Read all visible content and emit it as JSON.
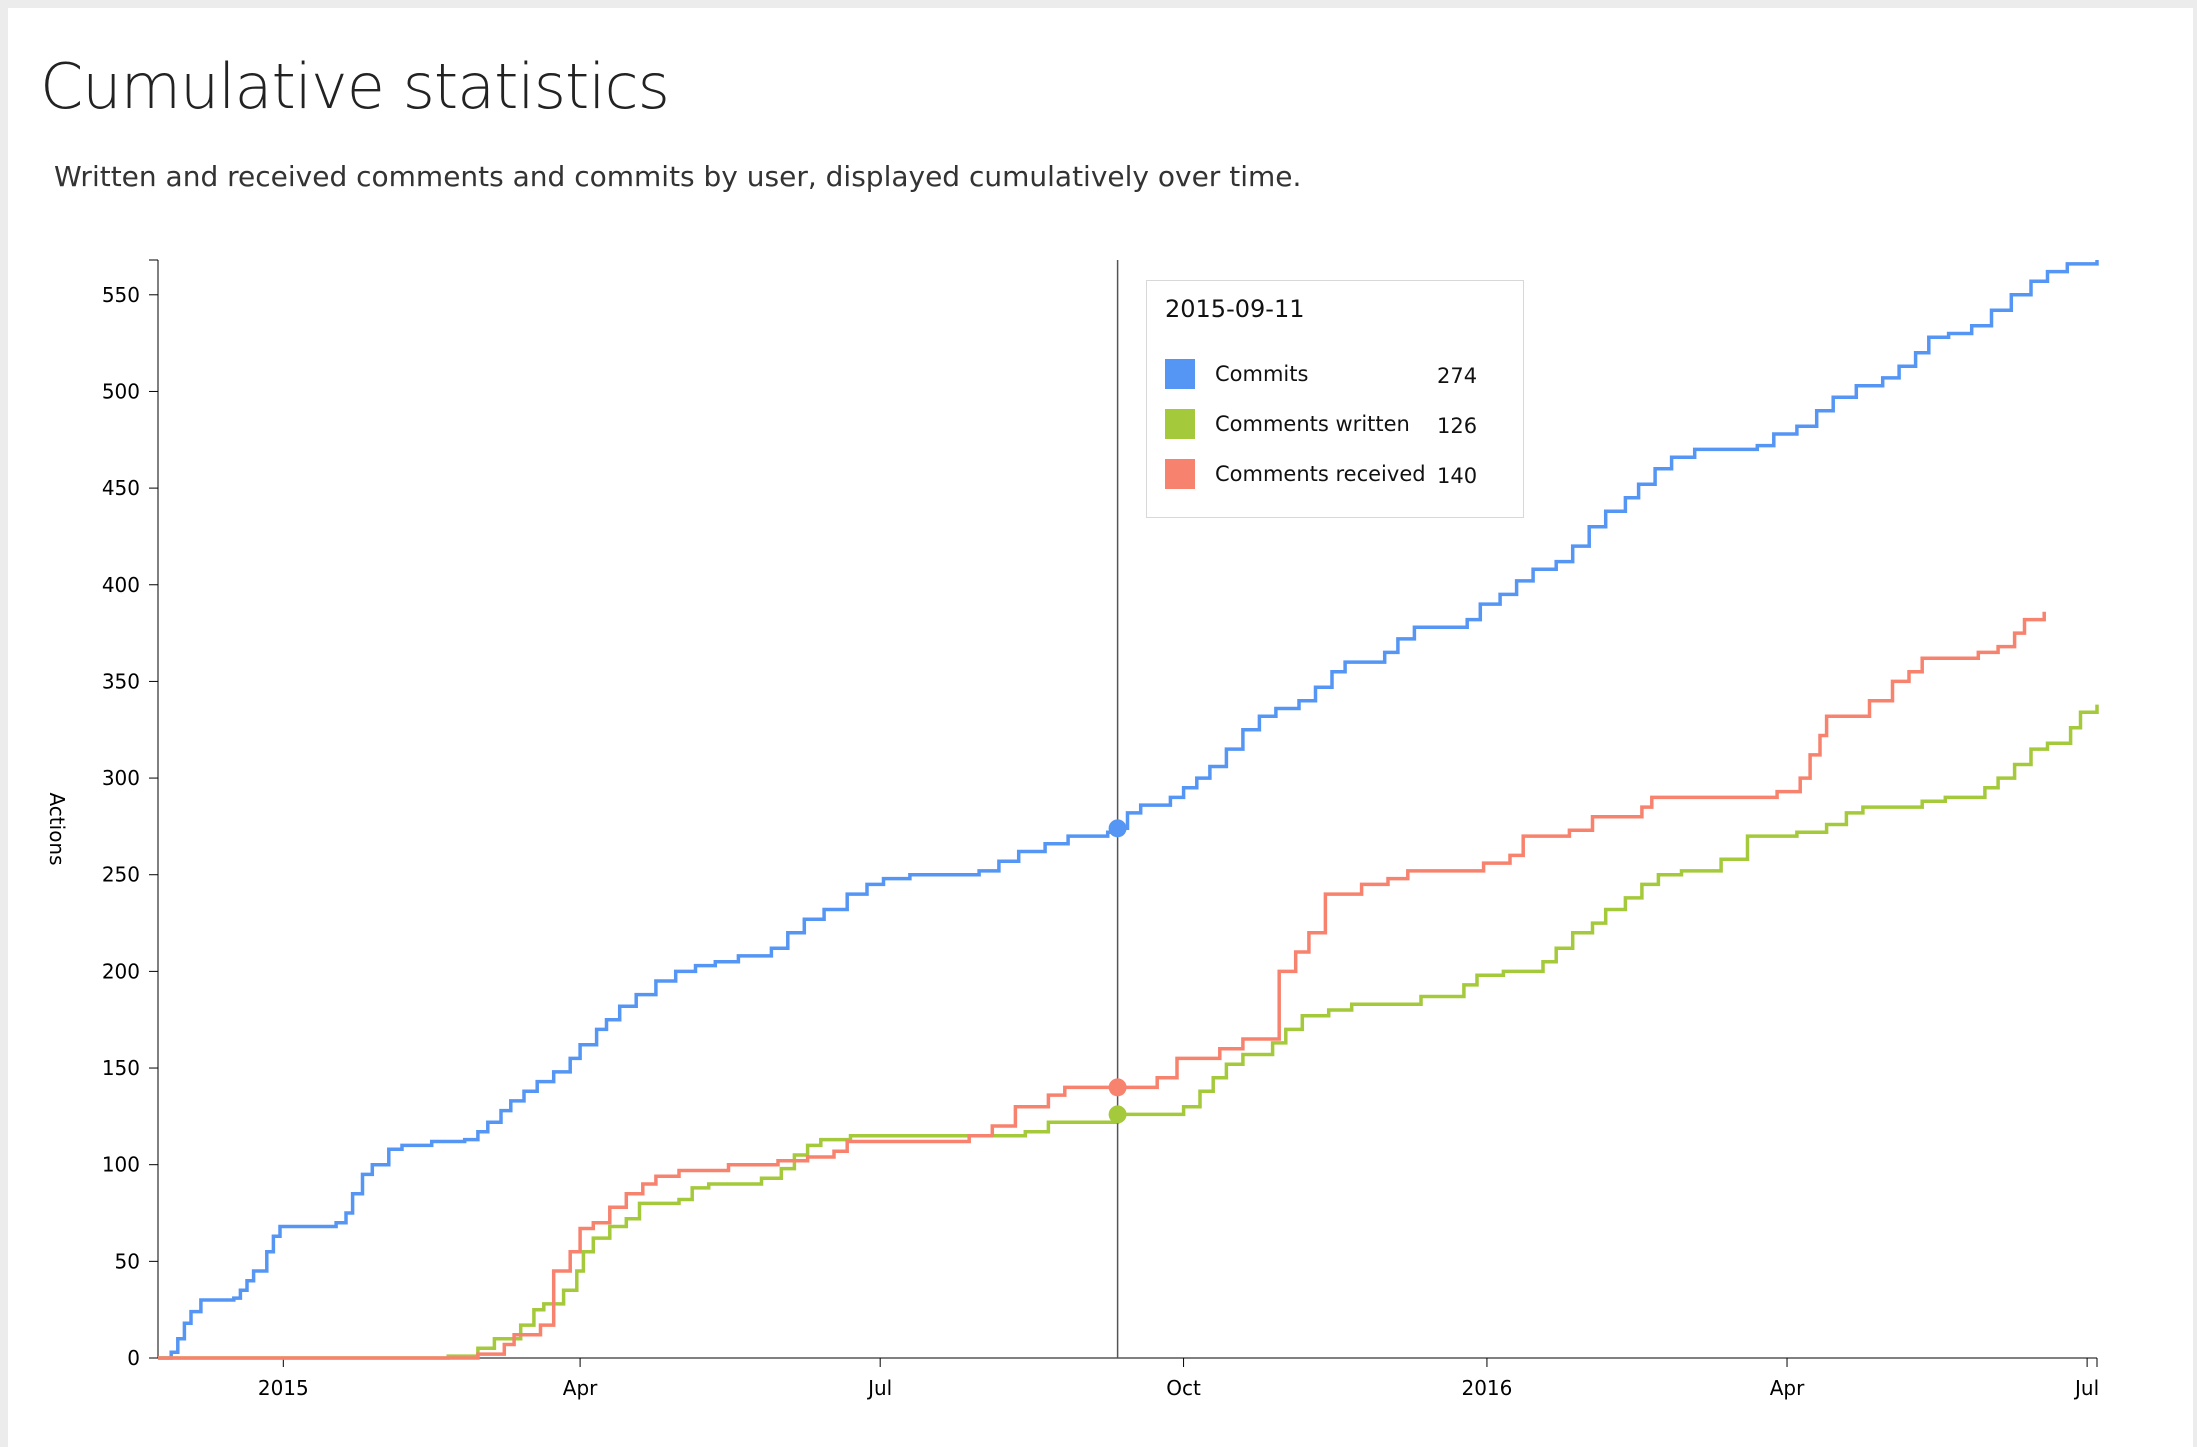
{
  "title": "Cumulative statistics",
  "subtitle": "Written and received comments and commits by user, displayed cumulatively over time.",
  "colors": {
    "commits": "#5596f5",
    "written": "#a4c93a",
    "received": "#f7836f"
  },
  "tooltip": {
    "date": "2015-09-11",
    "rows": [
      {
        "label": "Commits",
        "value": "274",
        "color": "#5596f5"
      },
      {
        "label": "Comments written",
        "value": "126",
        "color": "#a4c93a"
      },
      {
        "label": "Comments received",
        "value": "140",
        "color": "#f7836f"
      }
    ]
  },
  "chart_data": {
    "type": "line",
    "title": "Cumulative statistics",
    "ylabel": "Actions",
    "xlabel": "",
    "xlim": [
      "2014-11-24",
      "2016-07-04"
    ],
    "ylim": [
      0,
      568
    ],
    "yticks": [
      0,
      50,
      100,
      150,
      200,
      250,
      300,
      350,
      400,
      450,
      500,
      550
    ],
    "xticks": [
      {
        "date": "2015-01-01",
        "label": "2015"
      },
      {
        "date": "2015-04-01",
        "label": "Apr"
      },
      {
        "date": "2015-07-01",
        "label": "Jul"
      },
      {
        "date": "2015-10-01",
        "label": "Oct"
      },
      {
        "date": "2016-01-01",
        "label": "2016"
      },
      {
        "date": "2016-04-01",
        "label": "Apr"
      },
      {
        "date": "2016-07-01",
        "label": "Jul"
      }
    ],
    "cursor_date": "2015-09-11",
    "step": true,
    "series": [
      {
        "name": "Commits",
        "color": "#5596f5",
        "points": [
          [
            "2014-11-24",
            0
          ],
          [
            "2014-11-28",
            3
          ],
          [
            "2014-11-30",
            10
          ],
          [
            "2014-12-02",
            18
          ],
          [
            "2014-12-04",
            24
          ],
          [
            "2014-12-07",
            30
          ],
          [
            "2014-12-17",
            31
          ],
          [
            "2014-12-19",
            35
          ],
          [
            "2014-12-21",
            40
          ],
          [
            "2014-12-23",
            45
          ],
          [
            "2014-12-27",
            55
          ],
          [
            "2014-12-29",
            63
          ],
          [
            "2014-12-31",
            68
          ],
          [
            "2015-01-17",
            70
          ],
          [
            "2015-01-20",
            75
          ],
          [
            "2015-01-22",
            85
          ],
          [
            "2015-01-25",
            95
          ],
          [
            "2015-01-28",
            100
          ],
          [
            "2015-02-02",
            108
          ],
          [
            "2015-02-06",
            110
          ],
          [
            "2015-02-15",
            112
          ],
          [
            "2015-02-25",
            113
          ],
          [
            "2015-03-01",
            117
          ],
          [
            "2015-03-04",
            122
          ],
          [
            "2015-03-08",
            128
          ],
          [
            "2015-03-11",
            133
          ],
          [
            "2015-03-15",
            138
          ],
          [
            "2015-03-19",
            143
          ],
          [
            "2015-03-24",
            148
          ],
          [
            "2015-03-29",
            155
          ],
          [
            "2015-04-01",
            162
          ],
          [
            "2015-04-06",
            170
          ],
          [
            "2015-04-09",
            175
          ],
          [
            "2015-04-13",
            182
          ],
          [
            "2015-04-18",
            188
          ],
          [
            "2015-04-24",
            195
          ],
          [
            "2015-04-30",
            200
          ],
          [
            "2015-05-06",
            203
          ],
          [
            "2015-05-12",
            205
          ],
          [
            "2015-05-19",
            208
          ],
          [
            "2015-05-29",
            212
          ],
          [
            "2015-06-03",
            220
          ],
          [
            "2015-06-08",
            227
          ],
          [
            "2015-06-14",
            232
          ],
          [
            "2015-06-21",
            240
          ],
          [
            "2015-06-27",
            245
          ],
          [
            "2015-07-02",
            248
          ],
          [
            "2015-07-10",
            250
          ],
          [
            "2015-07-31",
            252
          ],
          [
            "2015-08-06",
            257
          ],
          [
            "2015-08-12",
            262
          ],
          [
            "2015-08-20",
            266
          ],
          [
            "2015-08-27",
            270
          ],
          [
            "2015-09-08",
            272
          ],
          [
            "2015-09-11",
            274
          ],
          [
            "2015-09-14",
            282
          ],
          [
            "2015-09-18",
            286
          ],
          [
            "2015-09-27",
            290
          ],
          [
            "2015-10-01",
            295
          ],
          [
            "2015-10-05",
            300
          ],
          [
            "2015-10-09",
            306
          ],
          [
            "2015-10-14",
            315
          ],
          [
            "2015-10-19",
            325
          ],
          [
            "2015-10-24",
            332
          ],
          [
            "2015-10-29",
            336
          ],
          [
            "2015-11-05",
            340
          ],
          [
            "2015-11-10",
            347
          ],
          [
            "2015-11-15",
            355
          ],
          [
            "2015-11-19",
            360
          ],
          [
            "2015-12-01",
            365
          ],
          [
            "2015-12-05",
            372
          ],
          [
            "2015-12-10",
            378
          ],
          [
            "2015-12-26",
            382
          ],
          [
            "2015-12-30",
            390
          ],
          [
            "2016-01-05",
            395
          ],
          [
            "2016-01-10",
            402
          ],
          [
            "2016-01-15",
            408
          ],
          [
            "2016-01-22",
            412
          ],
          [
            "2016-01-27",
            420
          ],
          [
            "2016-02-01",
            430
          ],
          [
            "2016-02-06",
            438
          ],
          [
            "2016-02-12",
            445
          ],
          [
            "2016-02-16",
            452
          ],
          [
            "2016-02-21",
            460
          ],
          [
            "2016-02-26",
            466
          ],
          [
            "2016-03-04",
            470
          ],
          [
            "2016-03-23",
            472
          ],
          [
            "2016-03-28",
            478
          ],
          [
            "2016-04-04",
            482
          ],
          [
            "2016-04-10",
            490
          ],
          [
            "2016-04-15",
            497
          ],
          [
            "2016-04-22",
            503
          ],
          [
            "2016-04-30",
            507
          ],
          [
            "2016-05-05",
            513
          ],
          [
            "2016-05-10",
            520
          ],
          [
            "2016-05-14",
            528
          ],
          [
            "2016-05-20",
            530
          ],
          [
            "2016-05-27",
            534
          ],
          [
            "2016-06-02",
            542
          ],
          [
            "2016-06-08",
            550
          ],
          [
            "2016-06-14",
            557
          ],
          [
            "2016-06-19",
            562
          ],
          [
            "2016-06-25",
            566
          ],
          [
            "2016-07-04",
            568
          ]
        ]
      },
      {
        "name": "Comments written",
        "color": "#a4c93a",
        "points": [
          [
            "2014-11-24",
            0
          ],
          [
            "2015-02-20",
            1
          ],
          [
            "2015-03-01",
            5
          ],
          [
            "2015-03-06",
            10
          ],
          [
            "2015-03-14",
            17
          ],
          [
            "2015-03-18",
            25
          ],
          [
            "2015-03-21",
            28
          ],
          [
            "2015-03-27",
            35
          ],
          [
            "2015-03-31",
            45
          ],
          [
            "2015-04-02",
            55
          ],
          [
            "2015-04-05",
            62
          ],
          [
            "2015-04-10",
            68
          ],
          [
            "2015-04-15",
            72
          ],
          [
            "2015-04-19",
            80
          ],
          [
            "2015-05-01",
            82
          ],
          [
            "2015-05-05",
            88
          ],
          [
            "2015-05-10",
            90
          ],
          [
            "2015-05-26",
            93
          ],
          [
            "2015-06-01",
            98
          ],
          [
            "2015-06-05",
            105
          ],
          [
            "2015-06-09",
            110
          ],
          [
            "2015-06-13",
            113
          ],
          [
            "2015-06-22",
            115
          ],
          [
            "2015-08-14",
            117
          ],
          [
            "2015-08-21",
            122
          ],
          [
            "2015-09-11",
            126
          ],
          [
            "2015-10-01",
            130
          ],
          [
            "2015-10-06",
            138
          ],
          [
            "2015-10-10",
            145
          ],
          [
            "2015-10-14",
            152
          ],
          [
            "2015-10-19",
            157
          ],
          [
            "2015-10-28",
            163
          ],
          [
            "2015-11-01",
            170
          ],
          [
            "2015-11-06",
            177
          ],
          [
            "2015-11-14",
            180
          ],
          [
            "2015-11-21",
            183
          ],
          [
            "2015-12-12",
            187
          ],
          [
            "2015-12-25",
            193
          ],
          [
            "2015-12-29",
            198
          ],
          [
            "2016-01-06",
            200
          ],
          [
            "2016-01-18",
            205
          ],
          [
            "2016-01-22",
            212
          ],
          [
            "2016-01-27",
            220
          ],
          [
            "2016-02-02",
            225
          ],
          [
            "2016-02-06",
            232
          ],
          [
            "2016-02-12",
            238
          ],
          [
            "2016-02-17",
            245
          ],
          [
            "2016-02-22",
            250
          ],
          [
            "2016-02-29",
            252
          ],
          [
            "2016-03-12",
            258
          ],
          [
            "2016-03-20",
            270
          ],
          [
            "2016-04-04",
            272
          ],
          [
            "2016-04-13",
            276
          ],
          [
            "2016-04-19",
            282
          ],
          [
            "2016-04-24",
            285
          ],
          [
            "2016-05-12",
            288
          ],
          [
            "2016-05-19",
            290
          ],
          [
            "2016-05-31",
            295
          ],
          [
            "2016-06-04",
            300
          ],
          [
            "2016-06-09",
            307
          ],
          [
            "2016-06-14",
            315
          ],
          [
            "2016-06-19",
            318
          ],
          [
            "2016-06-26",
            326
          ],
          [
            "2016-06-29",
            334
          ],
          [
            "2016-07-04",
            338
          ]
        ]
      },
      {
        "name": "Comments received",
        "color": "#f7836f",
        "points": [
          [
            "2014-11-24",
            0
          ],
          [
            "2015-03-01",
            2
          ],
          [
            "2015-03-09",
            7
          ],
          [
            "2015-03-12",
            12
          ],
          [
            "2015-03-20",
            17
          ],
          [
            "2015-03-24",
            45
          ],
          [
            "2015-03-29",
            55
          ],
          [
            "2015-04-01",
            67
          ],
          [
            "2015-04-05",
            70
          ],
          [
            "2015-04-10",
            78
          ],
          [
            "2015-04-15",
            85
          ],
          [
            "2015-04-20",
            90
          ],
          [
            "2015-04-24",
            94
          ],
          [
            "2015-05-01",
            97
          ],
          [
            "2015-05-16",
            100
          ],
          [
            "2015-05-31",
            102
          ],
          [
            "2015-06-09",
            104
          ],
          [
            "2015-06-17",
            107
          ],
          [
            "2015-06-21",
            112
          ],
          [
            "2015-07-28",
            115
          ],
          [
            "2015-08-04",
            120
          ],
          [
            "2015-08-11",
            130
          ],
          [
            "2015-08-21",
            136
          ],
          [
            "2015-08-26",
            140
          ],
          [
            "2015-09-23",
            145
          ],
          [
            "2015-09-29",
            155
          ],
          [
            "2015-10-12",
            160
          ],
          [
            "2015-10-19",
            165
          ],
          [
            "2015-10-30",
            200
          ],
          [
            "2015-11-04",
            210
          ],
          [
            "2015-11-08",
            220
          ],
          [
            "2015-11-13",
            240
          ],
          [
            "2015-11-24",
            245
          ],
          [
            "2015-12-02",
            248
          ],
          [
            "2015-12-08",
            252
          ],
          [
            "2015-12-31",
            256
          ],
          [
            "2016-01-08",
            260
          ],
          [
            "2016-01-12",
            270
          ],
          [
            "2016-01-26",
            273
          ],
          [
            "2016-02-02",
            280
          ],
          [
            "2016-02-17",
            285
          ],
          [
            "2016-02-20",
            290
          ],
          [
            "2016-03-29",
            293
          ],
          [
            "2016-04-05",
            300
          ],
          [
            "2016-04-08",
            312
          ],
          [
            "2016-04-11",
            322
          ],
          [
            "2016-04-13",
            332
          ],
          [
            "2016-04-26",
            340
          ],
          [
            "2016-05-03",
            350
          ],
          [
            "2016-05-08",
            355
          ],
          [
            "2016-05-12",
            362
          ],
          [
            "2016-05-29",
            365
          ],
          [
            "2016-06-04",
            368
          ],
          [
            "2016-06-09",
            375
          ],
          [
            "2016-06-12",
            382
          ],
          [
            "2016-06-18",
            386
          ]
        ]
      }
    ]
  }
}
